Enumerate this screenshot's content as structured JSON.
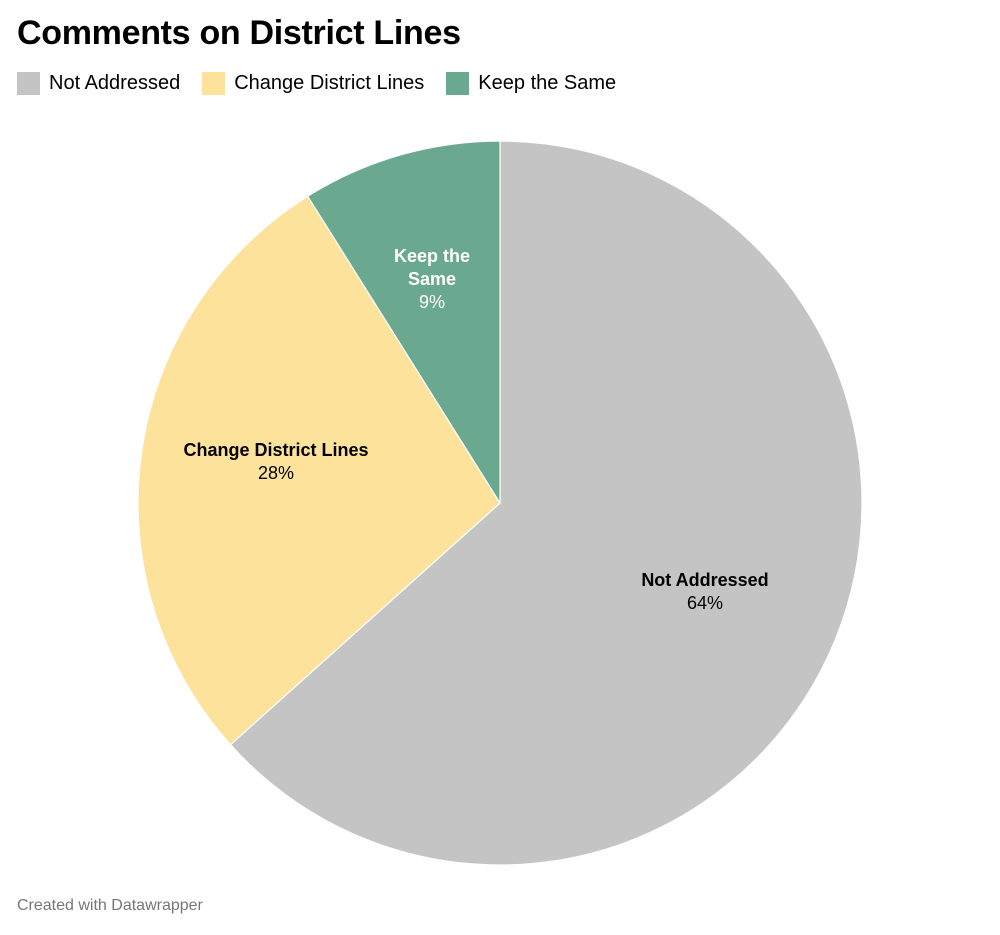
{
  "colors": {
    "not_addressed": "#c4c4c4",
    "change_district_lines": "#fde29c",
    "keep_the_same": "#6aa990"
  },
  "chart_data": {
    "type": "pie",
    "title": "Comments on District Lines",
    "legend_position": "top-left",
    "slices": [
      {
        "label": "Not Addressed",
        "label_lines": [
          "Not Addressed"
        ],
        "value": 64,
        "value_label": "64%",
        "color": "#c4c4c4",
        "text_color": "#000000"
      },
      {
        "label": "Change District Lines",
        "label_lines": [
          "Change District Lines"
        ],
        "value": 28,
        "value_label": "28%",
        "color": "#fde29c",
        "text_color": "#000000"
      },
      {
        "label": "Keep the Same",
        "label_lines": [
          "Keep the",
          "Same"
        ],
        "value": 9,
        "value_label": "9%",
        "color": "#6aa990",
        "text_color": "#ffffff"
      }
    ]
  },
  "footer": "Created with Datawrapper"
}
